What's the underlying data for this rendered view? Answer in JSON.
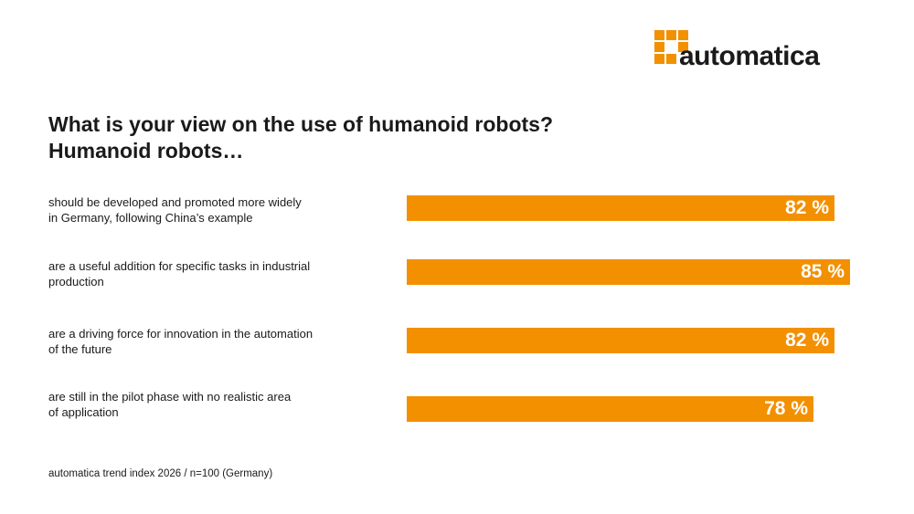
{
  "logo": {
    "text": "automatica",
    "color": "#f39000"
  },
  "header": {
    "title_line1": "What is your view on the use of humanoid robots?",
    "title_line2": "Humanoid robots…"
  },
  "chart_data": {
    "type": "bar",
    "orientation": "horizontal",
    "categories": [
      [
        "should be developed and promoted more widely",
        "in Germany, following China’s example"
      ],
      [
        "are a useful addition for specific tasks in industrial",
        "production"
      ],
      [
        "are a driving force for innovation in the automation",
        "of the future"
      ],
      [
        "are still in the pilot phase with no realistic area",
        "of application"
      ]
    ],
    "values": [
      82,
      85,
      82,
      78
    ],
    "value_labels": [
      "82 %",
      "85 %",
      "82 %",
      "78 %"
    ],
    "unit": "%",
    "bar_color": "#f39000",
    "value_label_color": "#ffffff",
    "xlim": [
      0,
      100
    ],
    "grid": false,
    "legend": "none"
  },
  "footer": {
    "source": "automatica trend index 2026 / n=100 (Germany)"
  }
}
